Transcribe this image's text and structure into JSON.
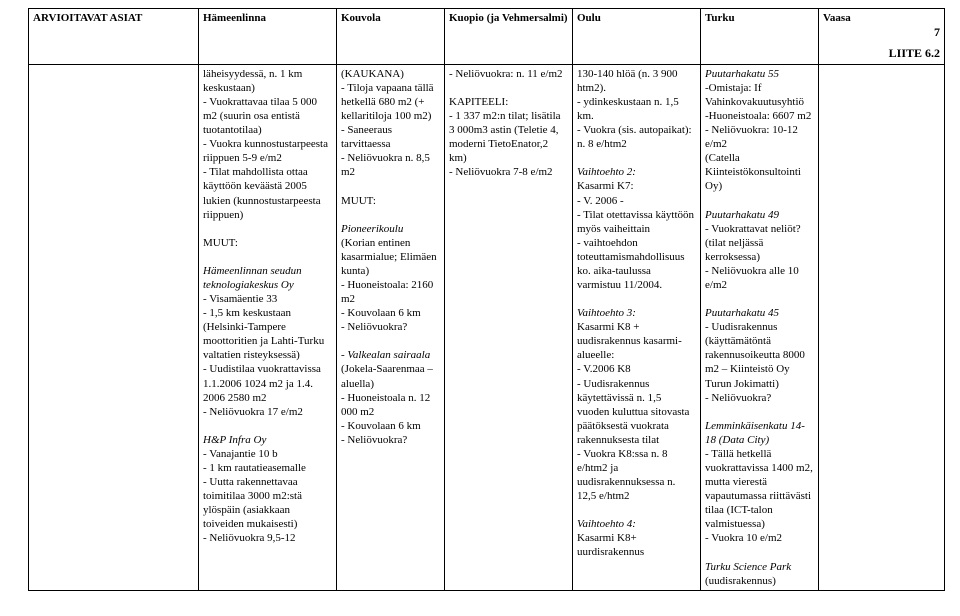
{
  "header": {
    "col1": "ARVIOITAVAT ASIAT",
    "col2": "Hämeenlinna",
    "col3": "Kouvola",
    "col4": "Kuopio (ja Vehmersalmi)",
    "col5": "Oulu",
    "col6": "Turku",
    "col7": "Vaasa",
    "page_number": "7",
    "liite": "LIITE 6.2"
  },
  "body": {
    "col1": "",
    "col2_a": "läheisyydessä, n. 1 km keskustaan)",
    "col2_b": "- Vuokrattavaa tilaa   5 000 m2 (suurin osa entistä tuotantotilaa)",
    "col2_c": "- Vuokra kunnostustarpeesta riippuen 5-9 e/m2",
    "col2_d": "- Tilat mahdollista ottaa käyttöön keväästä 2005 lukien (kunnostustarpeesta riippuen)",
    "col2_muut": "MUUT:",
    "col2_tech_title": "Hämeenlinnan seudun teknologiakeskus Oy",
    "col2_tech_1": "- Visamäentie 33",
    "col2_tech_2": "- 1,5 km keskustaan (Helsinki-Tampere moottoritien ja Lahti-Turku valtatien risteyksessä)",
    "col2_tech_3": "- Uudistilaa vuokrattavissa 1.1.2006 1024 m2 ja 1.4. 2006 2580 m2",
    "col2_tech_4": "- Neliövuokra 17 e/m2",
    "col2_hp_title": "H&P Infra Oy",
    "col2_hp_1": "- Vanajantie 10 b",
    "col2_hp_2": "- 1 km rautatieasemalle",
    "col2_hp_3": "- Uutta rakennettavaa toimitilaa 3000 m2:stä ylöspäin (asiakkaan toiveiden mukaisesti)",
    "col2_hp_4": "- Neliövuokra 9,5-12",
    "col3_a": "(KAUKANA)",
    "col3_b": "- Tiloja vapaana tällä hetkellä 680 m2 (+ kellaritiloja 100 m2)",
    "col3_c": "- Saneeraus tarvittaessa",
    "col3_d": "- Neliövuokra n. 8,5 m2",
    "col3_muut": "MUUT:",
    "col3_pk_title": "Pioneerikoulu",
    "col3_pk_suffix": " (Korian entinen kasarmialue; Elimäen kunta)",
    "col3_pk_1": "- Huoneistoala: 2160 m2",
    "col3_pk_2": "- Kouvolaan 6 km",
    "col3_pk_3": "- Neliövuokra?",
    "col3_vs_title_pre": "- ",
    "col3_vs_title": "Valkealan sairaala",
    "col3_vs_suffix": " (Jokela-Saarenmaa – aluella)",
    "col3_vs_1": "- Huoneistoala n. 12 000 m2",
    "col3_vs_2": "- Kouvolaan 6 km",
    "col3_vs_3": "- Neliövuokra?",
    "col4_a": "- Neliövuokra: n. 11 e/m2",
    "col4_kap": "KAPITEELI:",
    "col4_b": "- 1 337 m2:n tilat; lisätila 3 000m3 astin (Teletie 4, moderni TietoEnator,2 km)",
    "col4_c": "- Neliövuokra 7-8 e/m2",
    "col5_a": "130-140 hlöä (n. 3 900 htm2).",
    "col5_b": "- ydinkeskustaan n. 1,5 km.",
    "col5_c": "- Vuokra (sis. autopaikat): n. 8 e/htm2",
    "col5_v2_title": "Vaihtoehto 2:",
    "col5_v2_1": "Kasarmi K7:",
    "col5_v2_2": "- V. 2006 -",
    "col5_v2_3": "- Tilat otettavissa käyttöön myös vaiheittain",
    "col5_v2_4": "- vaihtoehdon toteuttamismahdollisuus ko. aika-taulussa varmistuu 11/2004.",
    "col5_v3_title": "Vaihtoehto 3:",
    "col5_v3_1": "Kasarmi K8 + uudisrakennus kasarmi-alueelle:",
    "col5_v3_2": "- V.2006 K8",
    "col5_v3_3": "- Uudisrakennus käytettävissä n. 1,5 vuoden kuluttua sitovasta päätöksestä vuokrata rakennuksesta tilat",
    "col5_v3_4": "- Vuokra K8:ssa n. 8 e/htm2 ja uudisrakennuksessa n. 12,5 e/htm2",
    "col5_v4_title": "Vaihtoehto 4:",
    "col5_v4_1": "Kasarmi K8+ uurdisrakennus",
    "col6_p55_title": "Puutarhakatu 55",
    "col6_p55_1": "-Omistaja: If Vahinkovakuutusyhtiö",
    "col6_p55_2": "-Huoneistoala: 6607 m2",
    "col6_p55_3": "- Neliövuokra: 10-12 e/m2",
    "col6_p55_4": "(Catella Kiinteistökonsultointi Oy)",
    "col6_p49_title": "Puutarhakatu 49",
    "col6_p49_1": "- Vuokrattavat neliöt? (tilat neljässä kerroksessa)",
    "col6_p49_2": "- Neliövuokra alle 10 e/m2",
    "col6_p45_title": "Puutarhakatu 45",
    "col6_p45_1": "- Uudisrakennus (käyttämätöntä rakennusoikeutta 8000 m2 – Kiinteistö Oy Turun Jokimatti)",
    "col6_p45_2": "- Neliövuokra?",
    "col6_lm_title": "Lemminkäisenkatu 14-18 (Data City)",
    "col6_lm_1": "- Tällä hetkellä vuokrattavissa 1400 m2, mutta vierestä vapautumassa riittävästi tilaa (ICT-talon valmistuessa)",
    "col6_lm_2": "- Vuokra 10 e/m2",
    "col6_tsp_title": "Turku Science Park",
    "col6_tsp_1": "(uudisrakennus)"
  }
}
